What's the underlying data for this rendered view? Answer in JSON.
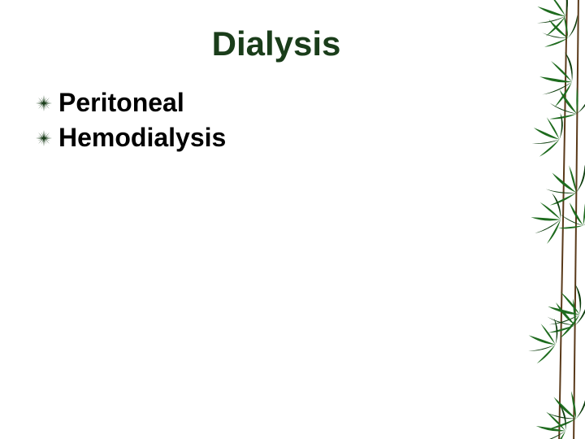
{
  "title": {
    "text": "Dialysis",
    "color": "#1a3d1a",
    "fontsize": 42
  },
  "bullets": [
    {
      "text": "Peritoneal"
    },
    {
      "text": "Hemodialysis"
    }
  ],
  "bullet_style": {
    "text_color": "#000000",
    "fontsize": 32,
    "icon_color": "#1a3d1a",
    "icon_size": 20
  },
  "decor": {
    "leaf_fill": "#1e6b1e",
    "leaf_dark": "#0d3d0d",
    "stem_color": "#5a3a1a",
    "background": "#ffffff"
  }
}
